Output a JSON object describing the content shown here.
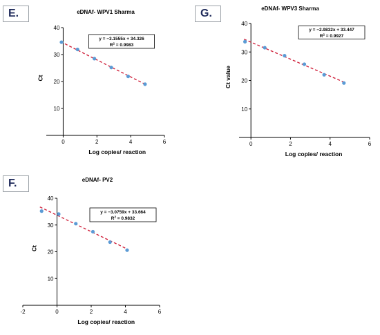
{
  "panels": {
    "E": {
      "label": "E."
    },
    "G": {
      "label": "G."
    },
    "F": {
      "label": "F."
    }
  },
  "chart_data": [
    {
      "id": "E",
      "type": "scatter",
      "title": "eDNAf- WPV1 Sharma",
      "xlabel": "Log copies/ reaction",
      "ylabel": "Ct",
      "xlim": [
        -1,
        6
      ],
      "ylim": [
        0,
        40
      ],
      "xticks": [
        0,
        2,
        4,
        6
      ],
      "yticks": [
        10,
        20,
        30,
        40
      ],
      "points": [
        [
          -0.1,
          34.6
        ],
        [
          0.85,
          31.9
        ],
        [
          1.85,
          28.5
        ],
        [
          2.85,
          25.2
        ],
        [
          3.85,
          21.9
        ],
        [
          4.85,
          19.0
        ]
      ],
      "trendline": {
        "slope": -3.1555,
        "intercept": 34.326,
        "x_from": -0.15,
        "x_to": 4.9,
        "style": "dashed",
        "color": "#d0233d"
      },
      "equation": "y = −3.1555x + 34.326",
      "r2_label": "R",
      "r2_sup": "2",
      "r2_value": " = 0.9983",
      "point_color": "#5b9bd5",
      "grid": false
    },
    {
      "id": "G",
      "type": "scatter",
      "title": "eDNAf- WPV3 Sharma",
      "xlabel": "Log copies/ reaction",
      "ylabel": "Ct value",
      "xlim": [
        -0.6,
        6
      ],
      "ylim": [
        0,
        40
      ],
      "xticks": [
        0,
        2,
        4,
        6
      ],
      "yticks": [
        10,
        20,
        30,
        40
      ],
      "points": [
        [
          -0.3,
          33.6
        ],
        [
          0.7,
          31.5
        ],
        [
          1.7,
          28.7
        ],
        [
          2.7,
          25.7
        ],
        [
          3.7,
          22.0
        ],
        [
          4.7,
          19.1
        ]
      ],
      "trendline": {
        "slope": -2.9832,
        "intercept": 33.447,
        "x_from": -0.35,
        "x_to": 4.75,
        "style": "dashed",
        "color": "#d0233d"
      },
      "equation": "y = −2.9832x + 33.447",
      "r2_label": "R",
      "r2_sup": "2",
      "r2_value": " = 0.9927",
      "point_color": "#5b9bd5",
      "grid": false
    },
    {
      "id": "F",
      "type": "scatter",
      "title": "eDNAf- PV2",
      "xlabel": "Log copies/ reaction",
      "ylabel": "Ct",
      "xlim": [
        -2,
        6
      ],
      "ylim": [
        0,
        40
      ],
      "xticks": [
        -2,
        0,
        2,
        4,
        6
      ],
      "yticks": [
        10,
        20,
        30,
        40
      ],
      "points": [
        [
          -0.9,
          35.2
        ],
        [
          0.1,
          34.1
        ],
        [
          1.1,
          30.5
        ],
        [
          2.1,
          27.5
        ],
        [
          3.1,
          23.6
        ],
        [
          4.1,
          20.6
        ]
      ],
      "trendline": {
        "slope": -3.0759,
        "intercept": 33.664,
        "x_from": -1.0,
        "x_to": 4.15,
        "style": "dashed",
        "color": "#d0233d"
      },
      "equation": "y = −3.0759x + 33.664",
      "r2_label": "R",
      "r2_sup": "2",
      "r2_value": " = 0.9832",
      "point_color": "#5b9bd5",
      "grid": false
    }
  ]
}
